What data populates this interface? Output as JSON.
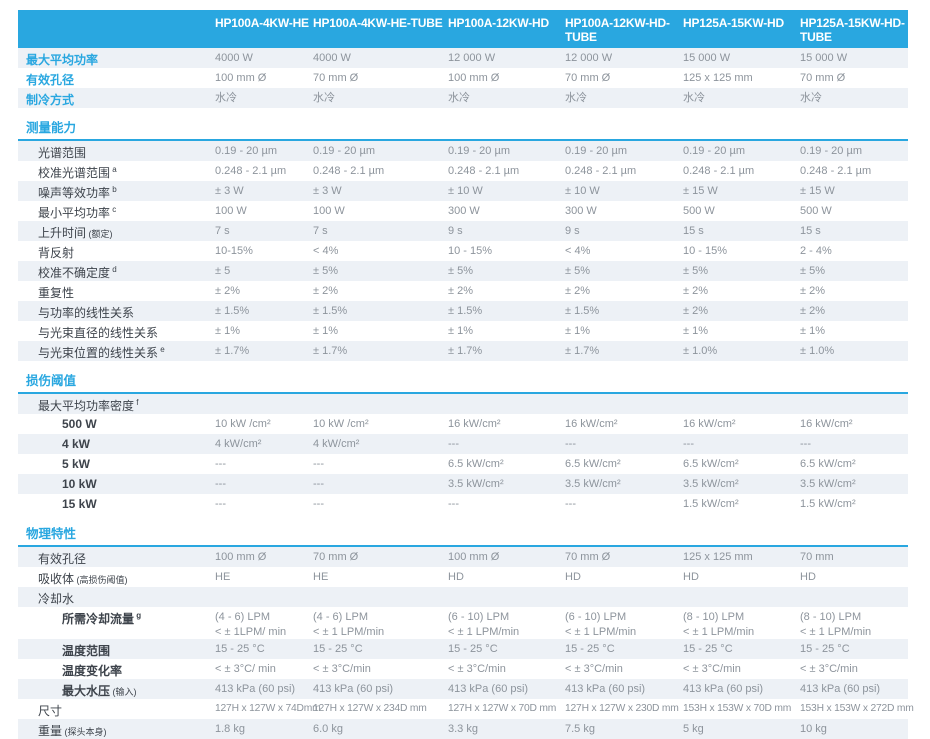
{
  "table": {
    "accent_color": "#29a7e0",
    "stripe_color": "#edf1f6",
    "header": {
      "columns": [
        "HP100A-4KW-HE",
        "HP100A-4KW-HE-TUBE",
        "HP100A-12KW-HD",
        "HP100A-12KW-HD-TUBE",
        "HP125A-15KW-HD",
        "HP125A-15KW-HD-TUBE"
      ]
    },
    "sections": [
      {
        "title": null,
        "accent": true,
        "rows": [
          {
            "label": "最大平均功率",
            "values": [
              "4000 W",
              "4000 W",
              "12 000 W",
              "12 000 W",
              "15 000 W",
              "15 000 W"
            ]
          },
          {
            "label": "有效孔径",
            "values": [
              "100 mm Ø",
              "70 mm Ø",
              "100 mm Ø",
              "70 mm Ø",
              "125 x 125 mm",
              "70 mm Ø"
            ]
          },
          {
            "label": "制冷方式",
            "values": [
              "水冷",
              "水冷",
              "水冷",
              "水冷",
              "水冷",
              "水冷"
            ]
          }
        ]
      },
      {
        "title": "测量能力",
        "rows": [
          {
            "label": "光谱范围",
            "values": [
              "0.19 - 20 µm",
              "0.19 - 20 µm",
              "0.19 - 20 µm",
              "0.19 - 20 µm",
              "0.19 - 20 µm",
              "0.19 - 20 µm"
            ]
          },
          {
            "label": "校准光谱范围",
            "sup": "a",
            "values": [
              "0.248 - 2.1 µm",
              "0.248 - 2.1 µm",
              "0.248 - 2.1 µm",
              "0.248 - 2.1 µm",
              "0.248 - 2.1 µm",
              "0.248 - 2.1 µm"
            ]
          },
          {
            "label": "噪声等效功率",
            "sup": "b",
            "values": [
              "± 3 W",
              "± 3 W",
              "± 10 W",
              "± 10 W",
              "± 15 W",
              "± 15 W"
            ]
          },
          {
            "label": "最小平均功率",
            "sup": "c",
            "values": [
              "100 W",
              "100 W",
              "300 W",
              "300 W",
              "500 W",
              "500 W"
            ]
          },
          {
            "label": "上升时间",
            "note": "(额定)",
            "values": [
              "7 s",
              "7 s",
              "9 s",
              "9 s",
              "15 s",
              "15 s"
            ]
          },
          {
            "label": "背反射",
            "values": [
              "10-15%",
              "< 4%",
              "10 - 15%",
              "< 4%",
              "10 - 15%",
              "2 - 4%"
            ]
          },
          {
            "label": "校准不确定度",
            "sup": "d",
            "values": [
              "± 5",
              "± 5%",
              "± 5%",
              "± 5%",
              "± 5%",
              "± 5%"
            ]
          },
          {
            "label": "重复性",
            "values": [
              "± 2%",
              "± 2%",
              "± 2%",
              "± 2%",
              "± 2%",
              "± 2%"
            ]
          },
          {
            "label": "与功率的线性关系",
            "values": [
              "± 1.5%",
              "± 1.5%",
              "± 1.5%",
              "± 1.5%",
              "± 2%",
              "± 2%"
            ]
          },
          {
            "label": "与光束直径的线性关系",
            "values": [
              "± 1%",
              "± 1%",
              "± 1%",
              "± 1%",
              "± 1%",
              "± 1%"
            ]
          },
          {
            "label": "与光束位置的线性关系",
            "sup": "e",
            "values": [
              "± 1.7%",
              "± 1.7%",
              "± 1.7%",
              "± 1.7%",
              "± 1.0%",
              "± 1.0%"
            ]
          }
        ]
      },
      {
        "title": "损伤阈值",
        "rows": [
          {
            "label": "最大平均功率密度",
            "sup": "f",
            "values": [
              "",
              "",
              "",
              "",
              "",
              ""
            ]
          },
          {
            "label": "500 W",
            "indent": 2,
            "values": [
              "10 kW /cm²",
              "10 kW /cm²",
              "16 kW/cm²",
              "16 kW/cm²",
              "16 kW/cm²",
              "16 kW/cm²"
            ]
          },
          {
            "label": "4 kW",
            "indent": 2,
            "values": [
              "4 kW/cm²",
              "4 kW/cm²",
              "---",
              "---",
              "---",
              "---"
            ]
          },
          {
            "label": "5 kW",
            "indent": 2,
            "values": [
              "---",
              "---",
              "6.5 kW/cm²",
              "6.5 kW/cm²",
              "6.5 kW/cm²",
              "6.5 kW/cm²"
            ]
          },
          {
            "label": "10 kW",
            "indent": 2,
            "values": [
              "---",
              "---",
              "3.5 kW/cm²",
              "3.5 kW/cm²",
              "3.5 kW/cm²",
              "3.5 kW/cm²"
            ]
          },
          {
            "label": "15 kW",
            "indent": 2,
            "values": [
              "---",
              "---",
              "---",
              "---",
              "1.5 kW/cm²",
              "1.5 kW/cm²"
            ]
          }
        ]
      },
      {
        "title": "物理特性",
        "rows": [
          {
            "label": "有效孔径",
            "values": [
              "100 mm Ø",
              "70 mm Ø",
              "100 mm Ø",
              "70 mm Ø",
              "125 x 125 mm",
              "70 mm"
            ]
          },
          {
            "label": "吸收体",
            "note": "(高损伤阈值)",
            "values": [
              "HE",
              "HE",
              "HD",
              "HD",
              "HD",
              "HD"
            ]
          },
          {
            "label": "冷却水",
            "values": [
              "",
              "",
              "",
              "",
              "",
              ""
            ]
          },
          {
            "label": "所需冷却流量",
            "sup": "g",
            "indent": 2,
            "values": [
              "(4 - 6) LPM\n< ± 1LPM/ min",
              "(4 - 6) LPM\n< ± 1 LPM/min",
              "(6 - 10) LPM\n< ± 1 LPM/min",
              "(6 - 10) LPM\n< ± 1 LPM/min",
              "(8 - 10) LPM\n< ± 1 LPM/min",
              "(8 - 10) LPM\n< ± 1 LPM/min"
            ]
          },
          {
            "label": "温度范围",
            "indent": 2,
            "values": [
              "15 - 25 °C",
              "15 - 25 °C",
              "15 - 25 °C",
              "15 - 25 °C",
              "15 - 25 °C",
              "15 - 25 °C"
            ]
          },
          {
            "label": "温度变化率",
            "indent": 2,
            "values": [
              "< ± 3°C/ min",
              "< ± 3°C/min",
              "< ± 3°C/min",
              "< ± 3°C/min",
              "< ± 3°C/min",
              "< ± 3°C/min"
            ]
          },
          {
            "label": "最大水压",
            "note": "(输入)",
            "indent": 2,
            "values": [
              "413 kPa (60 psi)",
              "413 kPa (60 psi)",
              "413 kPa (60 psi)",
              "413 kPa (60 psi)",
              "413 kPa (60 psi)",
              "413 kPa (60 psi)"
            ]
          },
          {
            "label": "尺寸",
            "compact": true,
            "values": [
              "127H x 127W x 74Dmm",
              "127H x 127W x 234D mm",
              "127H x 127W x 70D mm",
              "127H x 127W x 230D mm",
              "153H x 153W x 70D mm",
              "153H x 153W x 272D mm"
            ]
          },
          {
            "label": "重量",
            "note": "(探头本身)",
            "values": [
              "1.8 kg",
              "6.0 kg",
              "3.3 kg",
              "7.5 kg",
              "5 kg",
              "10 kg"
            ]
          }
        ]
      }
    ]
  }
}
